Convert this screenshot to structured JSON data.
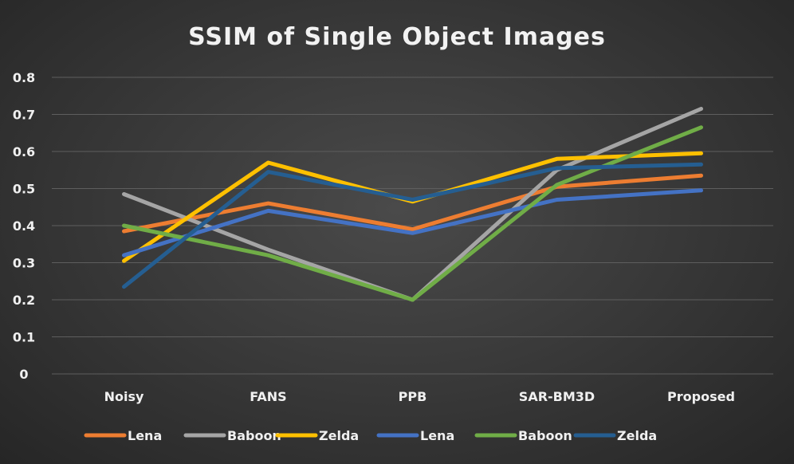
{
  "chart_data": {
    "type": "line",
    "title": "SSIM of Single Object Images",
    "xlabel": "",
    "ylabel": "",
    "categories": [
      "Noisy",
      "FANS",
      "PPB",
      "SAR-BM3D",
      "Proposed"
    ],
    "y_ticks": [
      "0",
      "0.1",
      "0.2",
      "0.3",
      "0.4",
      "0.5",
      "0.6",
      "0.7",
      "0.8"
    ],
    "ylim": [
      0,
      0.8
    ],
    "grid": true,
    "legend_position": "bottom",
    "series": [
      {
        "name": "Lena",
        "color": "#ED7D31",
        "values": [
          0.385,
          0.46,
          0.39,
          0.505,
          0.535
        ]
      },
      {
        "name": "Baboon",
        "color": "#A5A5A5",
        "values": [
          0.485,
          0.335,
          0.2,
          0.55,
          0.715
        ]
      },
      {
        "name": "Zelda",
        "color": "#FFC000",
        "values": [
          0.305,
          0.57,
          0.465,
          0.58,
          0.595
        ]
      },
      {
        "name": "Lena",
        "color": "#4472C4",
        "values": [
          0.32,
          0.44,
          0.38,
          0.47,
          0.495
        ]
      },
      {
        "name": "Baboon",
        "color": "#70AD47",
        "values": [
          0.4,
          0.32,
          0.2,
          0.51,
          0.665
        ]
      },
      {
        "name": "Zelda",
        "color": "#255E91",
        "values": [
          0.235,
          0.545,
          0.47,
          0.555,
          0.565
        ]
      }
    ]
  }
}
